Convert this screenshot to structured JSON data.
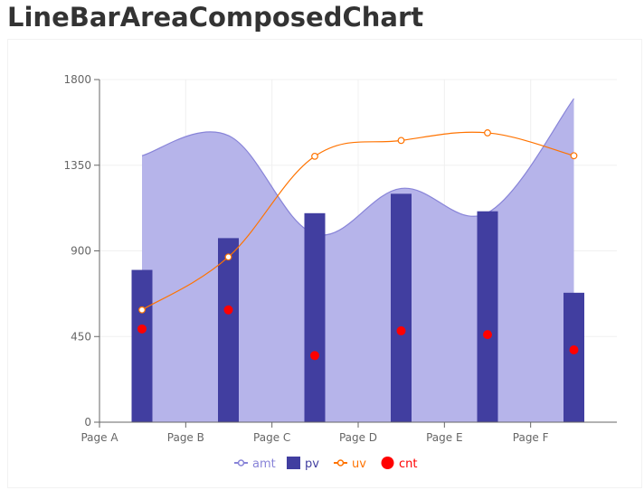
{
  "title": "LineBarAreaComposedChart",
  "chart_data": {
    "type": "composed",
    "categories": [
      "Page A",
      "Page B",
      "Page C",
      "Page D",
      "Page E",
      "Page F"
    ],
    "x_ticks": [
      "Page A",
      "Page B",
      "Page C",
      "Page D",
      "Page E",
      "Page F"
    ],
    "y_ticks": [
      0,
      450,
      900,
      1350,
      1800
    ],
    "ylim": [
      0,
      1800
    ],
    "grid": true,
    "legend_position": "bottom",
    "series": [
      {
        "name": "amt",
        "type": "area",
        "color": "#8884d8",
        "fill": "#b6b4ea",
        "values": [
          1400,
          1506,
          989,
          1228,
          1100,
          1700
        ]
      },
      {
        "name": "pv",
        "type": "bar",
        "color": "#413ea0",
        "values": [
          800,
          967,
          1098,
          1200,
          1108,
          680
        ]
      },
      {
        "name": "uv",
        "type": "line",
        "color": "#ff7300",
        "values": [
          590,
          868,
          1397,
          1480,
          1520,
          1400
        ]
      },
      {
        "name": "cnt",
        "type": "scatter",
        "color": "#ff0000",
        "values": [
          490,
          590,
          350,
          480,
          460,
          380
        ]
      }
    ]
  }
}
